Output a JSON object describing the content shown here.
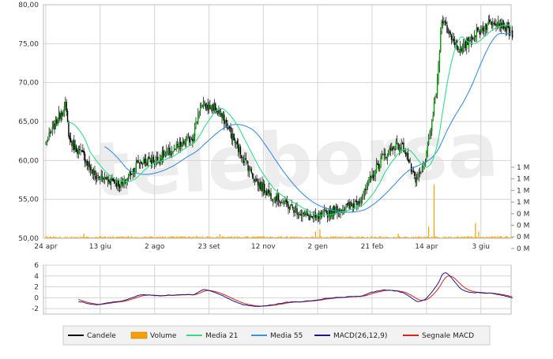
{
  "colors": {
    "candle_up": "#00a000",
    "candle_down": "#000000",
    "volume": "#f5a000",
    "media21": "#33dd88",
    "media55": "#3d8fe0",
    "macd": "#1a1a8a",
    "segnale": "#dd2020",
    "grid": "#d4d4d4",
    "legend_bg": "#f2f2f2",
    "legend_border": "#cccccc"
  },
  "watermark": "teleborsa",
  "chart_data": [
    {
      "type": "candlestick",
      "ylim": [
        50,
        80
      ],
      "y_ticks": [
        "80,00",
        "75,00",
        "70,00",
        "65,00",
        "60,00",
        "55,00",
        "50,00"
      ],
      "y_tick_values": [
        80,
        75,
        70,
        65,
        60,
        55,
        50
      ],
      "x_ticks": [
        "24 apr",
        "13 giu",
        "2 ago",
        "23 set",
        "12 nov",
        "2 gen",
        "21 feb",
        "14 apr",
        "3 giu"
      ],
      "x_tick_index": [
        0,
        50,
        100,
        150,
        200,
        250,
        300,
        350,
        400
      ],
      "n_days": 430,
      "close_knots": [
        [
          0,
          62.2
        ],
        [
          12,
          65.6
        ],
        [
          18,
          67.0
        ],
        [
          22,
          62.5
        ],
        [
          35,
          60.5
        ],
        [
          45,
          58.0
        ],
        [
          60,
          57.5
        ],
        [
          70,
          56.8
        ],
        [
          85,
          59.8
        ],
        [
          100,
          60.0
        ],
        [
          120,
          61.5
        ],
        [
          135,
          63.0
        ],
        [
          142,
          67.0
        ],
        [
          155,
          66.8
        ],
        [
          165,
          65.0
        ],
        [
          175,
          62.0
        ],
        [
          185,
          59.5
        ],
        [
          195,
          57.0
        ],
        [
          205,
          55.8
        ],
        [
          215,
          55.0
        ],
        [
          225,
          54.0
        ],
        [
          238,
          53.0
        ],
        [
          248,
          52.5
        ],
        [
          260,
          53.3
        ],
        [
          270,
          53.8
        ],
        [
          280,
          54.0
        ],
        [
          292,
          55.5
        ],
        [
          300,
          58.0
        ],
        [
          310,
          60.5
        ],
        [
          322,
          62.0
        ],
        [
          330,
          61.5
        ],
        [
          340,
          57.0
        ],
        [
          345,
          58.5
        ],
        [
          350,
          60.5
        ],
        [
          356,
          66.0
        ],
        [
          360,
          70.0
        ],
        [
          364,
          78.5
        ],
        [
          370,
          76.5
        ],
        [
          382,
          74.0
        ],
        [
          392,
          76.0
        ],
        [
          402,
          77.0
        ],
        [
          412,
          78.0
        ],
        [
          420,
          77.5
        ],
        [
          430,
          76.0
        ]
      ]
    },
    {
      "type": "line",
      "series": [
        {
          "name": "Media 21",
          "window": 21
        },
        {
          "name": "Media 55",
          "window": 55
        }
      ]
    },
    {
      "type": "bar",
      "series": [
        {
          "name": "Volume"
        }
      ],
      "y_ticks": [
        "1 M",
        "1 M",
        "1 M",
        "1 M",
        "0 M",
        "0 M",
        "0 M",
        "0 M"
      ],
      "base_level": 0.2,
      "spikes": [
        [
          35,
          0.55
        ],
        [
          160,
          0.5
        ],
        [
          248,
          0.8
        ],
        [
          252,
          1.1
        ],
        [
          324,
          0.55
        ],
        [
          352,
          1.4
        ],
        [
          357,
          6.5
        ],
        [
          395,
          1.8
        ],
        [
          398,
          0.8
        ]
      ]
    },
    {
      "type": "line",
      "ylim": [
        -3,
        6
      ],
      "y_ticks": [
        "6",
        "4",
        "2",
        "0",
        "-2"
      ],
      "y_tick_values": [
        6,
        4,
        2,
        0,
        -2
      ],
      "series": [
        {
          "name": "MACD(26,12,9)"
        },
        {
          "name": "Segnale MACD"
        }
      ]
    }
  ],
  "legend": [
    {
      "label": "Candele",
      "color_key": "candle_down",
      "kind": "line"
    },
    {
      "label": "Volume",
      "color_key": "volume",
      "kind": "box"
    },
    {
      "label": "Media 21",
      "color_key": "media21",
      "kind": "line"
    },
    {
      "label": "Media 55",
      "color_key": "media55",
      "kind": "line"
    },
    {
      "label": "MACD(26,12,9)",
      "color_key": "macd",
      "kind": "line"
    },
    {
      "label": "Segnale MACD",
      "color_key": "segnale",
      "kind": "line"
    }
  ]
}
